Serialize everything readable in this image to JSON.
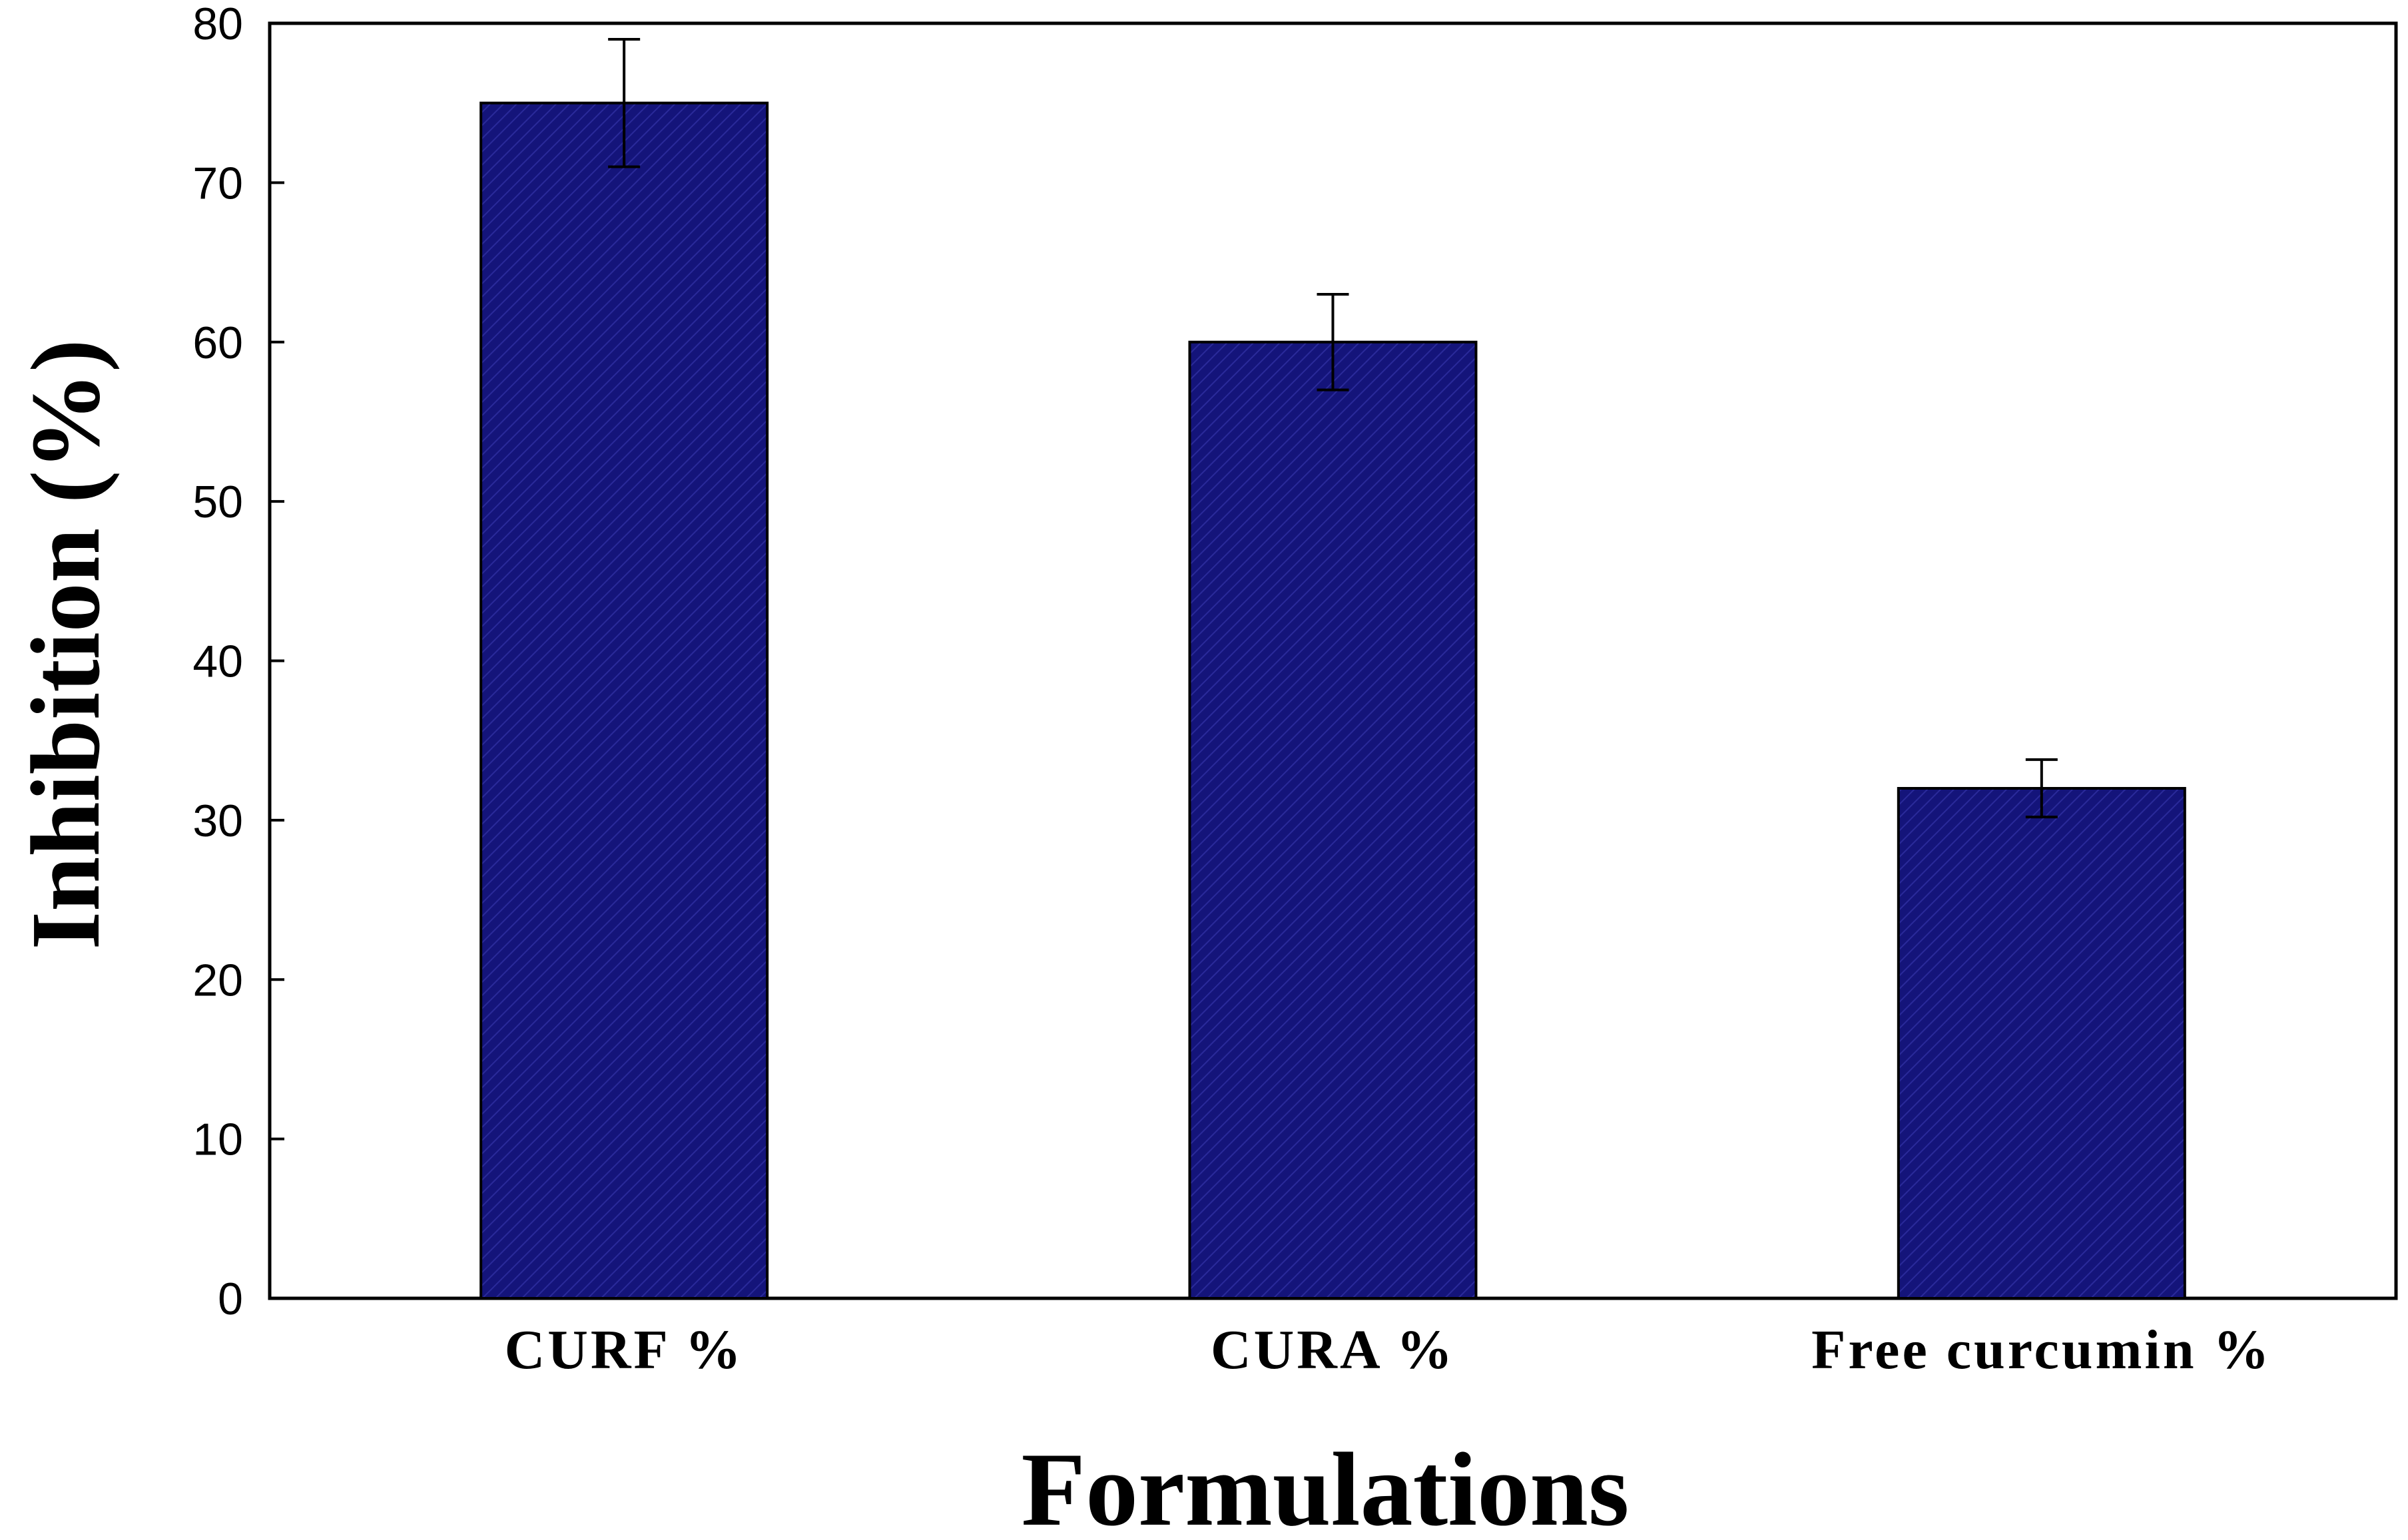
{
  "chart_data": {
    "type": "bar",
    "categories": [
      "CURF %",
      "CURA %",
      "Free curcumin %"
    ],
    "series": [
      {
        "values": [
          75,
          60,
          32
        ],
        "error": [
          4,
          3,
          1.8
        ],
        "color": "#14147a"
      }
    ],
    "xlabel": "Formulations",
    "ylabel": "Inhibition (%)",
    "ylim": [
      0,
      80
    ],
    "yticks": [
      0,
      10,
      20,
      30,
      40,
      50,
      60,
      70,
      80
    ],
    "grid": false,
    "bar_fill": "#14147a",
    "bar_hatch": "#2a2a9a"
  }
}
